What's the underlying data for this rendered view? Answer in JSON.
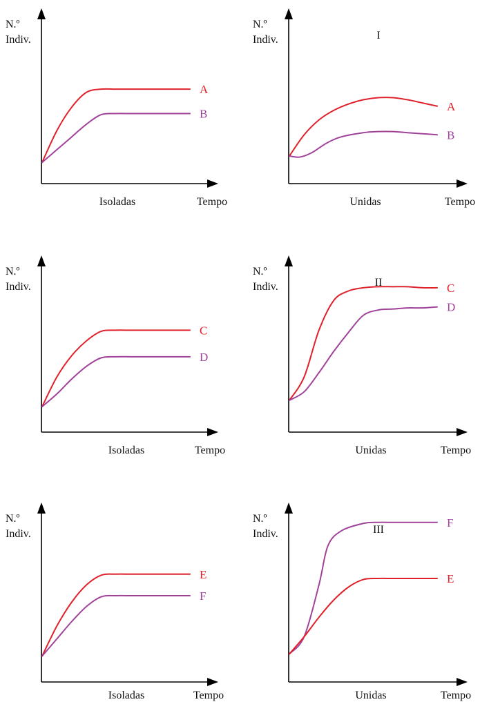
{
  "colors": {
    "red": "#e0202a",
    "purple": "#a0429a",
    "axis": "#000000"
  },
  "chart_data": [
    {
      "type": "line",
      "panel_title": "",
      "ylabel_line1": "N.º",
      "ylabel_line2": "Indiv.",
      "xlabel": "Tempo",
      "condition": "Isoladas",
      "series": [
        {
          "name": "A",
          "color": "red",
          "points": [
            [
              0,
              1.0
            ],
            [
              1,
              2.5
            ],
            [
              2,
              3.6
            ],
            [
              3,
              4.3
            ],
            [
              4,
              4.45
            ],
            [
              5,
              4.45
            ],
            [
              6,
              4.45
            ],
            [
              7,
              4.45
            ],
            [
              8,
              4.45
            ],
            [
              9,
              4.45
            ],
            [
              10,
              4.45
            ]
          ]
        },
        {
          "name": "B",
          "color": "purple",
          "points": [
            [
              0,
              1.0
            ],
            [
              1,
              1.6
            ],
            [
              2,
              2.2
            ],
            [
              3,
              2.8
            ],
            [
              4,
              3.25
            ],
            [
              5,
              3.3
            ],
            [
              6,
              3.3
            ],
            [
              7,
              3.3
            ],
            [
              8,
              3.3
            ],
            [
              9,
              3.3
            ],
            [
              10,
              3.3
            ]
          ]
        }
      ]
    },
    {
      "type": "line",
      "panel_title": "I",
      "ylabel_line1": "N.º",
      "ylabel_line2": "Indiv.",
      "xlabel": "Tempo",
      "condition": "Unidas",
      "series": [
        {
          "name": "A",
          "color": "red",
          "points": [
            [
              0,
              1.3
            ],
            [
              1,
              2.3
            ],
            [
              2,
              3.0
            ],
            [
              3,
              3.45
            ],
            [
              4,
              3.75
            ],
            [
              5,
              3.95
            ],
            [
              6,
              4.05
            ],
            [
              7,
              4.05
            ],
            [
              8,
              3.95
            ],
            [
              9,
              3.8
            ],
            [
              10,
              3.65
            ]
          ]
        },
        {
          "name": "B",
          "color": "purple",
          "points": [
            [
              0,
              1.3
            ],
            [
              0.7,
              1.25
            ],
            [
              1.5,
              1.45
            ],
            [
              2.5,
              1.9
            ],
            [
              3.5,
              2.2
            ],
            [
              5,
              2.4
            ],
            [
              6,
              2.45
            ],
            [
              7,
              2.45
            ],
            [
              8,
              2.4
            ],
            [
              9,
              2.35
            ],
            [
              10,
              2.3
            ]
          ]
        }
      ]
    },
    {
      "type": "line",
      "panel_title": "",
      "ylabel_line1": "N.º",
      "ylabel_line2": "Indiv.",
      "xlabel": "Tempo",
      "condition": "Isoladas",
      "series": [
        {
          "name": "C",
          "color": "red",
          "points": [
            [
              0,
              1.2
            ],
            [
              1,
              2.6
            ],
            [
              2,
              3.6
            ],
            [
              3,
              4.3
            ],
            [
              4,
              4.75
            ],
            [
              5,
              4.8
            ],
            [
              6,
              4.8
            ],
            [
              7,
              4.8
            ],
            [
              8,
              4.8
            ],
            [
              9,
              4.8
            ],
            [
              10,
              4.8
            ]
          ]
        },
        {
          "name": "D",
          "color": "purple",
          "points": [
            [
              0,
              1.2
            ],
            [
              1,
              1.8
            ],
            [
              2,
              2.5
            ],
            [
              3,
              3.1
            ],
            [
              4,
              3.5
            ],
            [
              5,
              3.55
            ],
            [
              6,
              3.55
            ],
            [
              7,
              3.55
            ],
            [
              8,
              3.55
            ],
            [
              9,
              3.55
            ],
            [
              10,
              3.55
            ]
          ]
        }
      ]
    },
    {
      "type": "line",
      "panel_title": "II",
      "ylabel_line1": "N.º",
      "ylabel_line2": "Indiv.",
      "xlabel": "Tempo",
      "condition": "Unidas",
      "series": [
        {
          "name": "C",
          "color": "red",
          "points": [
            [
              0,
              1.5
            ],
            [
              1,
              2.6
            ],
            [
              2,
              4.8
            ],
            [
              3,
              6.2
            ],
            [
              4,
              6.65
            ],
            [
              5,
              6.8
            ],
            [
              6,
              6.85
            ],
            [
              7,
              6.85
            ],
            [
              8,
              6.85
            ],
            [
              9,
              6.8
            ],
            [
              10,
              6.8
            ]
          ]
        },
        {
          "name": "D",
          "color": "purple",
          "points": [
            [
              0,
              1.5
            ],
            [
              1,
              1.9
            ],
            [
              2,
              2.8
            ],
            [
              3,
              3.8
            ],
            [
              4,
              4.7
            ],
            [
              5,
              5.5
            ],
            [
              6,
              5.75
            ],
            [
              7,
              5.8
            ],
            [
              8,
              5.85
            ],
            [
              9,
              5.85
            ],
            [
              10,
              5.9
            ]
          ]
        }
      ]
    },
    {
      "type": "line",
      "panel_title": "",
      "ylabel_line1": "N.º",
      "ylabel_line2": "Indiv.",
      "xlabel": "Tempo",
      "condition": "Isoladas",
      "series": [
        {
          "name": "E",
          "color": "red",
          "points": [
            [
              0,
              1.2
            ],
            [
              1,
              2.6
            ],
            [
              2,
              3.7
            ],
            [
              3,
              4.5
            ],
            [
              4,
              4.95
            ],
            [
              5,
              5.0
            ],
            [
              6,
              5.0
            ],
            [
              7,
              5.0
            ],
            [
              8,
              5.0
            ],
            [
              9,
              5.0
            ],
            [
              10,
              5.0
            ]
          ]
        },
        {
          "name": "F",
          "color": "purple",
          "points": [
            [
              0,
              1.2
            ],
            [
              1,
              2.0
            ],
            [
              2,
              2.8
            ],
            [
              3,
              3.5
            ],
            [
              4,
              3.95
            ],
            [
              5,
              4.0
            ],
            [
              6,
              4.0
            ],
            [
              7,
              4.0
            ],
            [
              8,
              4.0
            ],
            [
              9,
              4.0
            ],
            [
              10,
              4.0
            ]
          ]
        }
      ]
    },
    {
      "type": "line",
      "panel_title": "III",
      "ylabel_line1": "N.º",
      "ylabel_line2": "Indiv.",
      "xlabel": "Tempo",
      "condition": "Unidas",
      "series": [
        {
          "name": "F",
          "color": "purple",
          "points": [
            [
              0,
              1.3
            ],
            [
              1,
              2.1
            ],
            [
              2,
              4.5
            ],
            [
              2.6,
              6.3
            ],
            [
              3.5,
              7.0
            ],
            [
              5,
              7.35
            ],
            [
              6,
              7.4
            ],
            [
              7,
              7.4
            ],
            [
              8,
              7.4
            ],
            [
              9,
              7.4
            ],
            [
              10,
              7.4
            ]
          ]
        },
        {
          "name": "E",
          "color": "red",
          "points": [
            [
              0,
              1.3
            ],
            [
              1,
              2.1
            ],
            [
              2,
              3.0
            ],
            [
              3,
              3.8
            ],
            [
              4,
              4.4
            ],
            [
              5,
              4.75
            ],
            [
              6,
              4.8
            ],
            [
              7,
              4.8
            ],
            [
              8,
              4.8
            ],
            [
              9,
              4.8
            ],
            [
              10,
              4.8
            ]
          ]
        }
      ]
    }
  ]
}
